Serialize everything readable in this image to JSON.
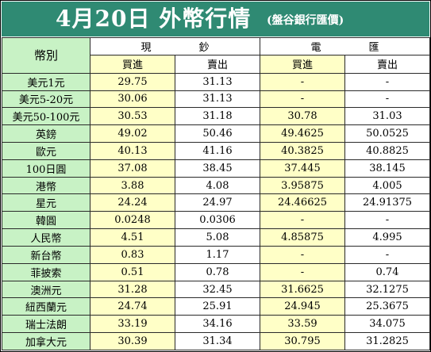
{
  "title": "4月20日 外幣行情",
  "subtitle": "(盤谷銀行匯價)",
  "headers": {
    "currency": "幣別",
    "cash": [
      "現",
      "鈔"
    ],
    "wire": [
      "電",
      "匯"
    ],
    "buy": "買進",
    "sell": "賣出"
  },
  "rows": [
    {
      "name": "美元1元",
      "cash_buy": "29.75",
      "cash_sell": "31.13",
      "wire_buy": "-",
      "wire_sell": "-"
    },
    {
      "name": "美元5-20元",
      "cash_buy": "30.06",
      "cash_sell": "31.13",
      "wire_buy": "-",
      "wire_sell": "-"
    },
    {
      "name": "美元50-100元",
      "cash_buy": "30.53",
      "cash_sell": "31.18",
      "wire_buy": "30.78",
      "wire_sell": "31.03"
    },
    {
      "name": "英鎊",
      "cash_buy": "49.02",
      "cash_sell": "50.46",
      "wire_buy": "49.4625",
      "wire_sell": "50.0525"
    },
    {
      "name": "歐元",
      "cash_buy": "40.13",
      "cash_sell": "41.16",
      "wire_buy": "40.3825",
      "wire_sell": "40.8825"
    },
    {
      "name": "100日圓",
      "cash_buy": "37.08",
      "cash_sell": "38.45",
      "wire_buy": "37.445",
      "wire_sell": "38.145"
    },
    {
      "name": "港幣",
      "cash_buy": "3.88",
      "cash_sell": "4.08",
      "wire_buy": "3.95875",
      "wire_sell": "4.005"
    },
    {
      "name": "星元",
      "cash_buy": "24.24",
      "cash_sell": "24.97",
      "wire_buy": "24.46625",
      "wire_sell": "24.91375"
    },
    {
      "name": "韓圓",
      "cash_buy": "0.0248",
      "cash_sell": "0.0306",
      "wire_buy": "-",
      "wire_sell": "-"
    },
    {
      "name": "人民幣",
      "cash_buy": "4.51",
      "cash_sell": "5.08",
      "wire_buy": "4.85875",
      "wire_sell": "4.995"
    },
    {
      "name": "新台幣",
      "cash_buy": "0.83",
      "cash_sell": "1.17",
      "wire_buy": "-",
      "wire_sell": "-"
    },
    {
      "name": "菲披索",
      "cash_buy": "0.51",
      "cash_sell": "0.78",
      "wire_buy": "-",
      "wire_sell": "0.74"
    },
    {
      "name": "澳洲元",
      "cash_buy": "31.28",
      "cash_sell": "32.45",
      "wire_buy": "31.6625",
      "wire_sell": "32.1275"
    },
    {
      "name": "紐西蘭元",
      "cash_buy": "24.74",
      "cash_sell": "25.91",
      "wire_buy": "24.945",
      "wire_sell": "25.3675"
    },
    {
      "name": "瑞士法朗",
      "cash_buy": "33.19",
      "cash_sell": "34.16",
      "wire_buy": "33.59",
      "wire_sell": "34.075"
    },
    {
      "name": "加拿大元",
      "cash_buy": "30.39",
      "cash_sell": "31.34",
      "wire_buy": "30.795",
      "wire_sell": "31.2825"
    }
  ],
  "colors": {
    "title_bar": "#2f8a73",
    "name_column": "#c8f2c5",
    "buy_column": "#ffffc7",
    "sell_column": "#ffffff"
  }
}
